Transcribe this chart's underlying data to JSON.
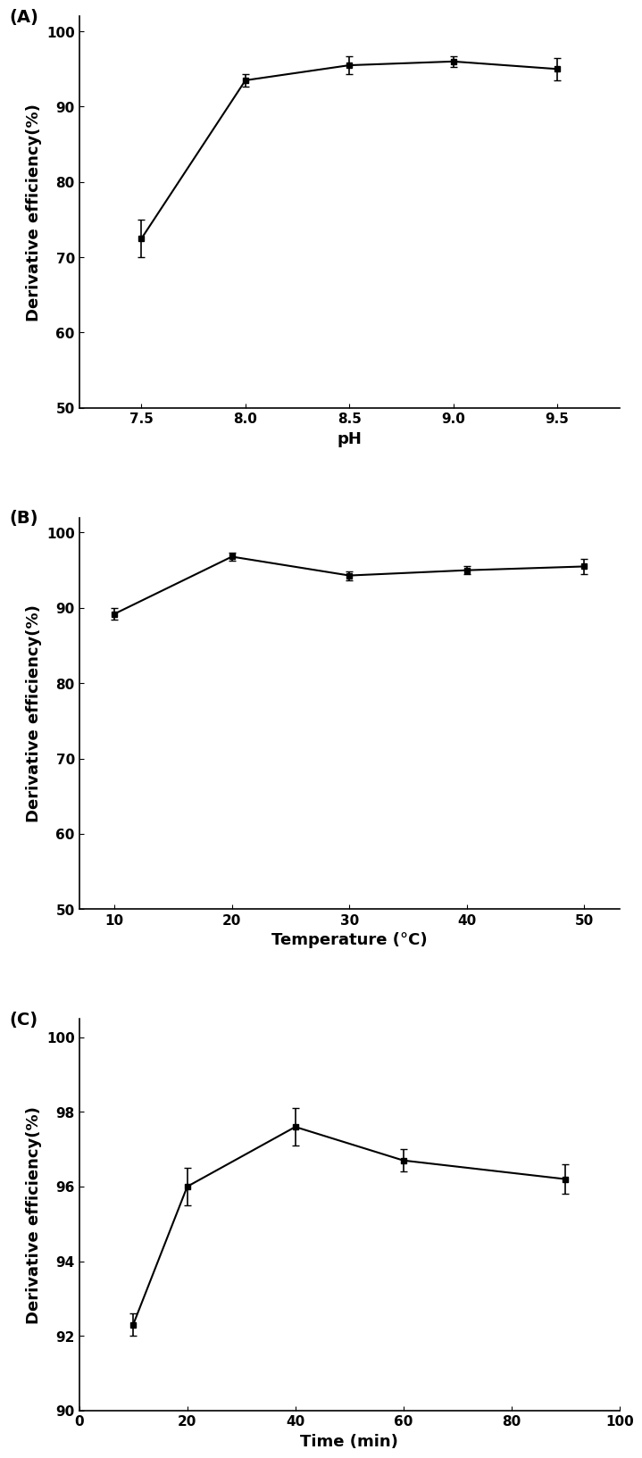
{
  "panel_A": {
    "x": [
      7.5,
      8.0,
      8.5,
      9.0,
      9.5
    ],
    "y": [
      72.5,
      93.5,
      95.5,
      96.0,
      95.0
    ],
    "yerr": [
      2.5,
      0.8,
      1.2,
      0.7,
      1.5
    ],
    "xlabel": "pH",
    "ylabel": "Derivative efficiency(%)",
    "ylim": [
      50,
      102
    ],
    "yticks": [
      50,
      60,
      70,
      80,
      90,
      100
    ],
    "xlim": [
      7.2,
      9.8
    ],
    "xticks": [
      7.5,
      8.0,
      8.5,
      9.0,
      9.5
    ],
    "label": "(A)"
  },
  "panel_B": {
    "x": [
      10,
      20,
      30,
      40,
      50
    ],
    "y": [
      89.2,
      96.8,
      94.3,
      95.0,
      95.5
    ],
    "yerr": [
      0.8,
      0.5,
      0.6,
      0.5,
      1.0
    ],
    "xlabel": "Temperature (°C)",
    "ylabel": "Derivative efficiency(%)",
    "ylim": [
      50,
      102
    ],
    "yticks": [
      50,
      60,
      70,
      80,
      90,
      100
    ],
    "xlim": [
      7,
      53
    ],
    "xticks": [
      10,
      20,
      30,
      40,
      50
    ],
    "label": "(B)"
  },
  "panel_C": {
    "x": [
      10,
      20,
      40,
      60,
      90
    ],
    "y": [
      92.3,
      96.0,
      97.6,
      96.7,
      96.2
    ],
    "yerr": [
      0.3,
      0.5,
      0.5,
      0.3,
      0.4
    ],
    "xlabel": "Time (min)",
    "ylabel": "Derivative efficiency(%)",
    "ylim": [
      90,
      100.5
    ],
    "yticks": [
      90,
      92,
      94,
      96,
      98,
      100
    ],
    "xlim": [
      0,
      100
    ],
    "xticks": [
      0,
      20,
      40,
      60,
      80,
      100
    ],
    "label": "(C)"
  },
  "marker": "s",
  "markersize": 5,
  "linewidth": 1.5,
  "color": "black",
  "capsize": 3,
  "elinewidth": 1.2,
  "label_fontsize": 13,
  "tick_fontsize": 11,
  "panel_label_fontsize": 14,
  "background_color": "#ffffff"
}
